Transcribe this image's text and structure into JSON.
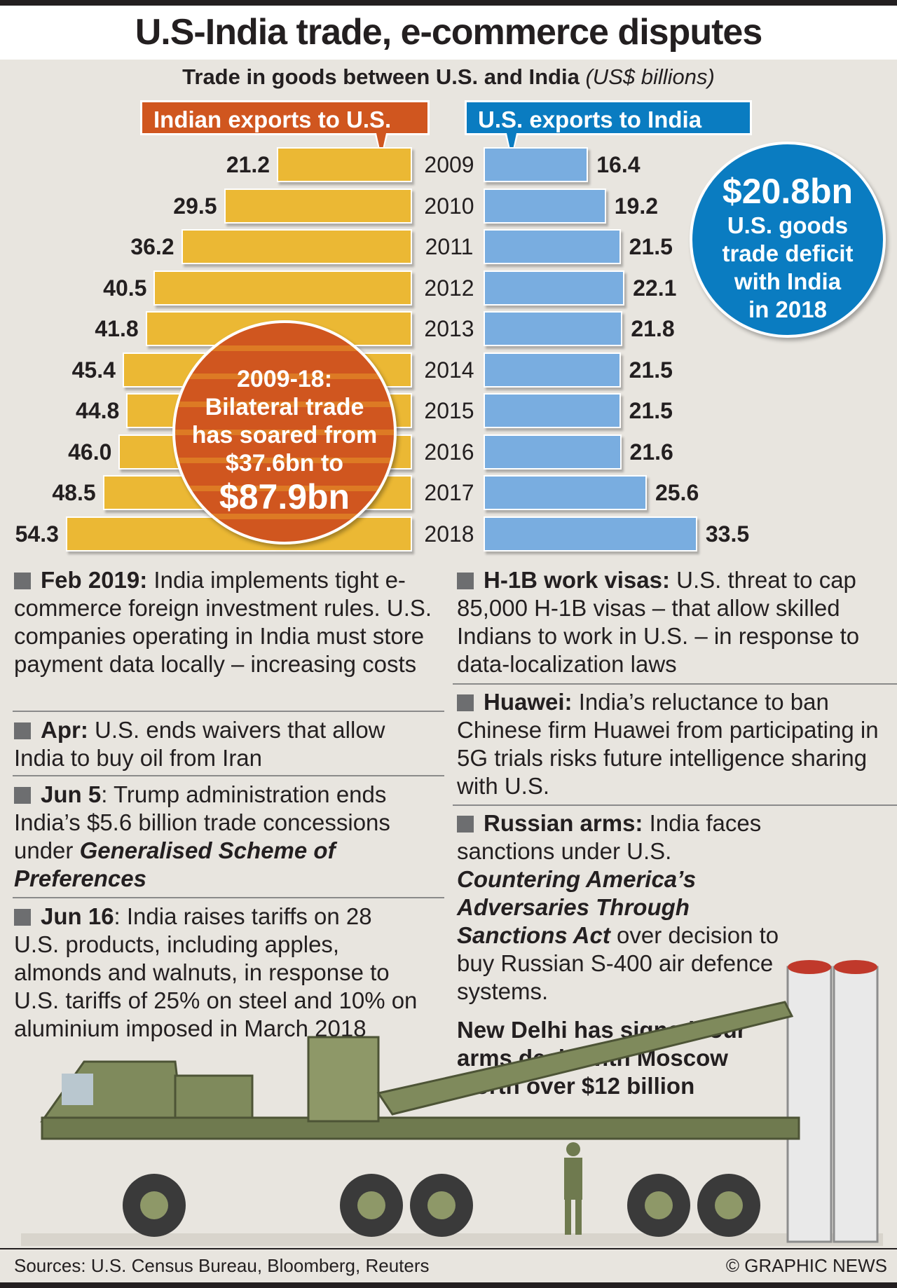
{
  "title": "U.S-India trade, e-commerce disputes",
  "subtitle": "Trade in goods between U.S. and India",
  "subtitle_units": "(US$ billions)",
  "colors": {
    "india": "#ebb834",
    "us": "#79ade0",
    "orange": "#d0561f",
    "blue": "#0a7cc1"
  },
  "chart_data": {
    "type": "bar",
    "title": "Trade in goods between U.S. and India (US$ billions)",
    "categories": [
      "2009",
      "2010",
      "2011",
      "2012",
      "2013",
      "2014",
      "2015",
      "2016",
      "2017",
      "2018"
    ],
    "series": [
      {
        "name": "Indian exports to U.S.",
        "values": [
          21.2,
          29.5,
          36.2,
          40.5,
          41.8,
          45.4,
          44.8,
          46.0,
          48.5,
          54.3
        ],
        "labels": [
          "21.2",
          "29.5",
          "36.2",
          "40.5",
          "41.8",
          "45.4",
          "44.8",
          "46.0",
          "48.5",
          "54.3"
        ]
      },
      {
        "name": "U.S. exports to India",
        "values": [
          16.4,
          19.2,
          21.5,
          22.1,
          21.8,
          21.5,
          21.5,
          21.6,
          25.6,
          33.5
        ],
        "labels": [
          "16.4",
          "19.2",
          "21.5",
          "22.1",
          "21.8",
          "21.5",
          "21.5",
          "21.6",
          "25.6",
          "33.5"
        ]
      }
    ]
  },
  "deficit": {
    "amount": "$20.8bn",
    "line1": "U.S. goods",
    "line2": "trade deficit",
    "line3": "with India",
    "line4": "in 2018"
  },
  "bilateral": {
    "line1": "2009-18:",
    "line2": "Bilateral trade",
    "line3": "has soared from",
    "line4": "$37.6bn to",
    "amount": "$87.9bn"
  },
  "left": [
    {
      "head": "Feb 2019:",
      "text": " India implements tight e-commerce foreign investment rules. U.S. companies operating in India must store payment data locally – increasing costs"
    },
    {
      "head": "Apr:",
      "text": " U.S. ends waivers that allow India to buy oil from Iran"
    },
    {
      "head": "Jun 5",
      "text": ": Trump administration ends India’s $5.6 billion trade concessions under ",
      "italic": "Generalised Scheme of Preferences"
    },
    {
      "head": "Jun 16",
      "text": ": India raises tariffs on 28 U.S. products, including apples, almonds and walnuts, in response to U.S. tariffs of 25% on steel and 10% on aluminium imposed in March 2018"
    }
  ],
  "right": [
    {
      "head": "H-1B work visas:",
      "text": " U.S. threat to cap 85,000 H-1B visas – that allow skilled Indians to work in U.S. – in response to data-localization laws"
    },
    {
      "head": "Huawei:",
      "text": " India’s reluctance to ban Chinese firm Huawei from participating in 5G trials risks future intelligence sharing with U.S."
    },
    {
      "head": "Russian arms:",
      "text": " India faces sanctions under U.S. ",
      "italic": "Countering America’s Adversaries Through Sanctions Act",
      "text2": " over decision to buy Russian S-400 air defence systems."
    }
  ],
  "arms_note": "New Delhi has signed four arms deals with Moscow worth over $12 billion",
  "footer": {
    "sources": "Sources: U.S. Census Bureau, Bloomberg, Reuters",
    "credit": "© GRAPHIC NEWS"
  }
}
